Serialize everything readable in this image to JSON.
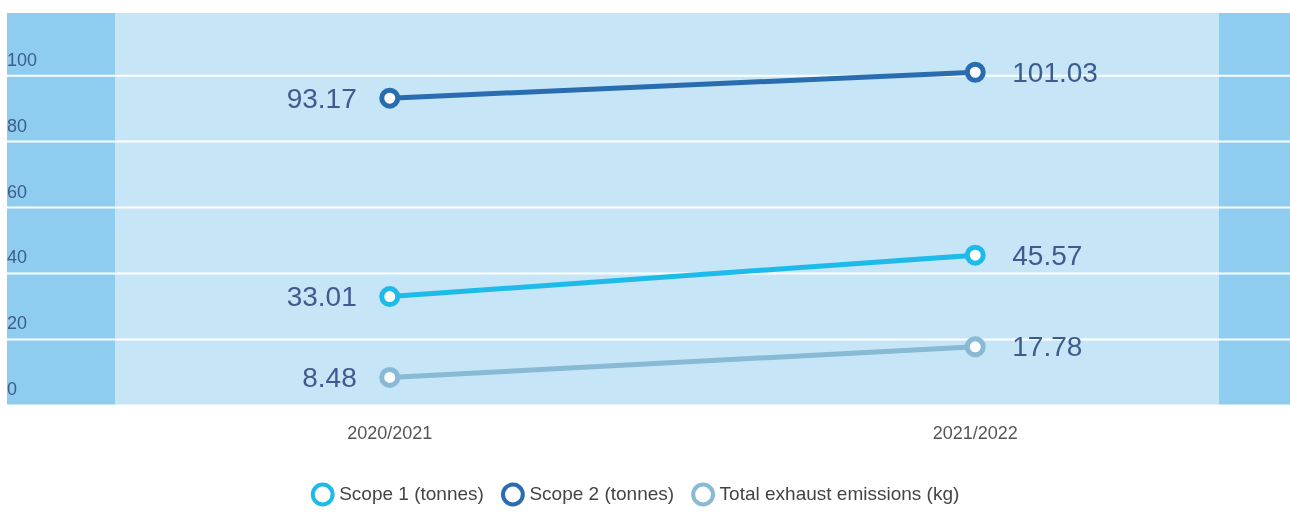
{
  "chart_data": {
    "type": "line",
    "categories": [
      "2020/2021",
      "2021/2022"
    ],
    "series": [
      {
        "name": "Scope 1 (tonnes)",
        "color": "#1dbbe9",
        "values": [
          33.01,
          45.57
        ]
      },
      {
        "name": "Scope 2 (tonnes)",
        "color": "#2a6cb0",
        "values": [
          93.17,
          101.03
        ]
      },
      {
        "name": "Total exhaust emissions (kg)",
        "color": "#88b9d5",
        "values": [
          8.48,
          17.78
        ]
      }
    ],
    "ylim": [
      0,
      119
    ],
    "yticks": [
      0,
      20,
      40,
      60,
      80,
      100
    ],
    "grid": "y",
    "legend": "bottom",
    "marker": "circle",
    "data_labels": true
  }
}
